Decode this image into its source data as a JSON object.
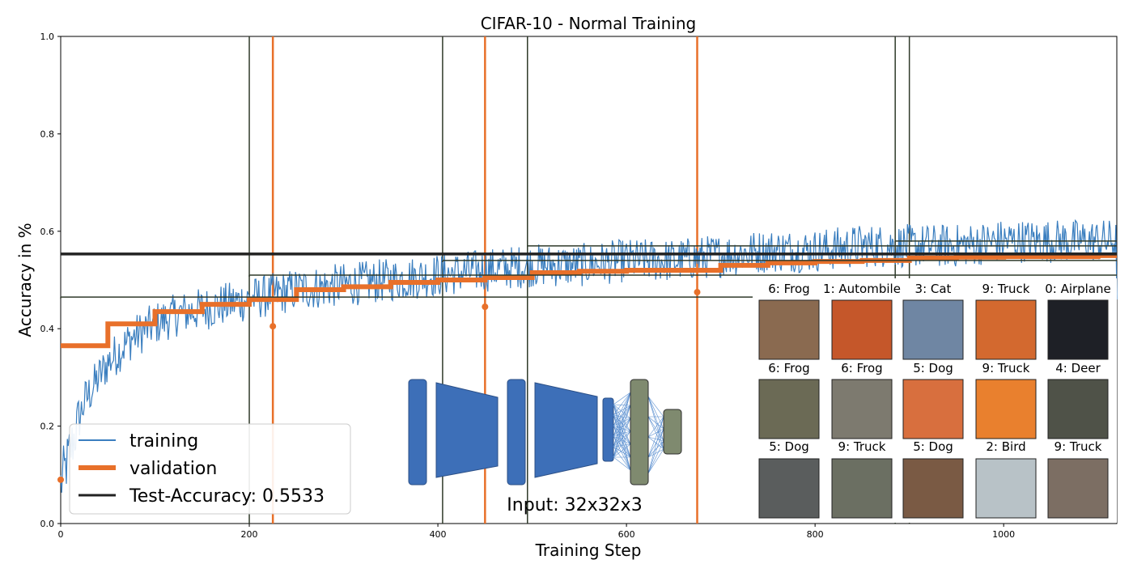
{
  "chart_data": {
    "type": "line",
    "title": "CIFAR-10 - Normal Training",
    "xlabel": "Training Step",
    "ylabel": "Accuracy in %",
    "xlim": [
      0,
      1120
    ],
    "ylim": [
      0.0,
      1.0
    ],
    "x_ticks": [
      0,
      200,
      400,
      600,
      800,
      1000
    ],
    "y_ticks": [
      0.0,
      0.2,
      0.4,
      0.6,
      0.8,
      1.0
    ],
    "x_tick_labels": [
      "0",
      "200",
      "400",
      "600",
      "800",
      "1000"
    ],
    "y_tick_labels": [
      "0.0",
      "0.2",
      "0.4",
      "0.6",
      "0.8",
      "1.0"
    ],
    "grid": false,
    "legend_position": "bottom-left",
    "legend": [
      {
        "label": "training",
        "color": "#3a7ebf"
      },
      {
        "label": "validation",
        "color": "#e8702a"
      },
      {
        "label": "Test-Accuracy: 0.5533",
        "color": "#222222"
      }
    ],
    "series": [
      {
        "name": "training",
        "color": "#3a7ebf",
        "x": [
          0,
          25,
          50,
          75,
          100,
          125,
          150,
          175,
          200,
          250,
          300,
          350,
          400,
          450,
          500,
          550,
          600,
          650,
          700,
          750,
          800,
          850,
          900,
          950,
          1000,
          1050,
          1100,
          1120
        ],
        "y": [
          0.08,
          0.25,
          0.33,
          0.38,
          0.41,
          0.43,
          0.44,
          0.45,
          0.46,
          0.48,
          0.49,
          0.5,
          0.51,
          0.52,
          0.53,
          0.53,
          0.54,
          0.54,
          0.55,
          0.56,
          0.56,
          0.57,
          0.57,
          0.57,
          0.58,
          0.58,
          0.58,
          0.58
        ]
      },
      {
        "name": "validation",
        "color": "#e8702a",
        "x": [
          0,
          50,
          100,
          150,
          200,
          250,
          300,
          350,
          400,
          450,
          500,
          550,
          600,
          650,
          700,
          750,
          800,
          850,
          900,
          950,
          1000,
          1050,
          1100,
          1120
        ],
        "y": [
          0.365,
          0.41,
          0.435,
          0.45,
          0.46,
          0.48,
          0.486,
          0.495,
          0.5,
          0.505,
          0.515,
          0.518,
          0.52,
          0.52,
          0.53,
          0.535,
          0.538,
          0.54,
          0.545,
          0.547,
          0.548,
          0.548,
          0.55,
          0.55
        ]
      }
    ],
    "validation_markers": [
      {
        "x": 0,
        "y": 0.09
      },
      {
        "x": 225,
        "y": 0.405
      },
      {
        "x": 450,
        "y": 0.445
      },
      {
        "x": 675,
        "y": 0.475
      }
    ],
    "test_accuracy_segments": [
      {
        "x0": 0,
        "x1": 200,
        "y": 0.465
      },
      {
        "x0": 200,
        "x1": 405,
        "y": 0.51
      },
      {
        "x0": 405,
        "x1": 495,
        "y": 0.54
      },
      {
        "x0": 495,
        "x1": 885,
        "y": 0.57
      },
      {
        "x0": 885,
        "x1": 900,
        "y": 0.58
      },
      {
        "x0": 900,
        "x1": 1120,
        "y": 0.555
      }
    ],
    "test_accuracy_final": 0.5533,
    "orange_vlines": [
      225,
      450,
      675
    ],
    "dark_vlines": [
      200,
      405,
      495,
      885,
      900
    ]
  },
  "overlay": {
    "input_label": "Input: 32x32x3",
    "sample_labels": [
      "6: Frog",
      "1: Autombile",
      "3: Cat",
      "9: Truck",
      "0: Airplane",
      "6: Frog",
      "6: Frog",
      "5: Dog",
      "9: Truck",
      "4: Deer",
      "5: Dog",
      "9: Truck",
      "5: Dog",
      "2: Bird",
      "9: Truck"
    ],
    "sample_colors": [
      "#8a6a50",
      "#c5572a",
      "#6f86a3",
      "#d3692f",
      "#1e2026",
      "#6b6a55",
      "#7d7a6f",
      "#d86f3e",
      "#e9802e",
      "#4f5248",
      "#5a5d5d",
      "#6b6f62",
      "#7a5a44",
      "#b8c2c7",
      "#7c6e63"
    ]
  }
}
